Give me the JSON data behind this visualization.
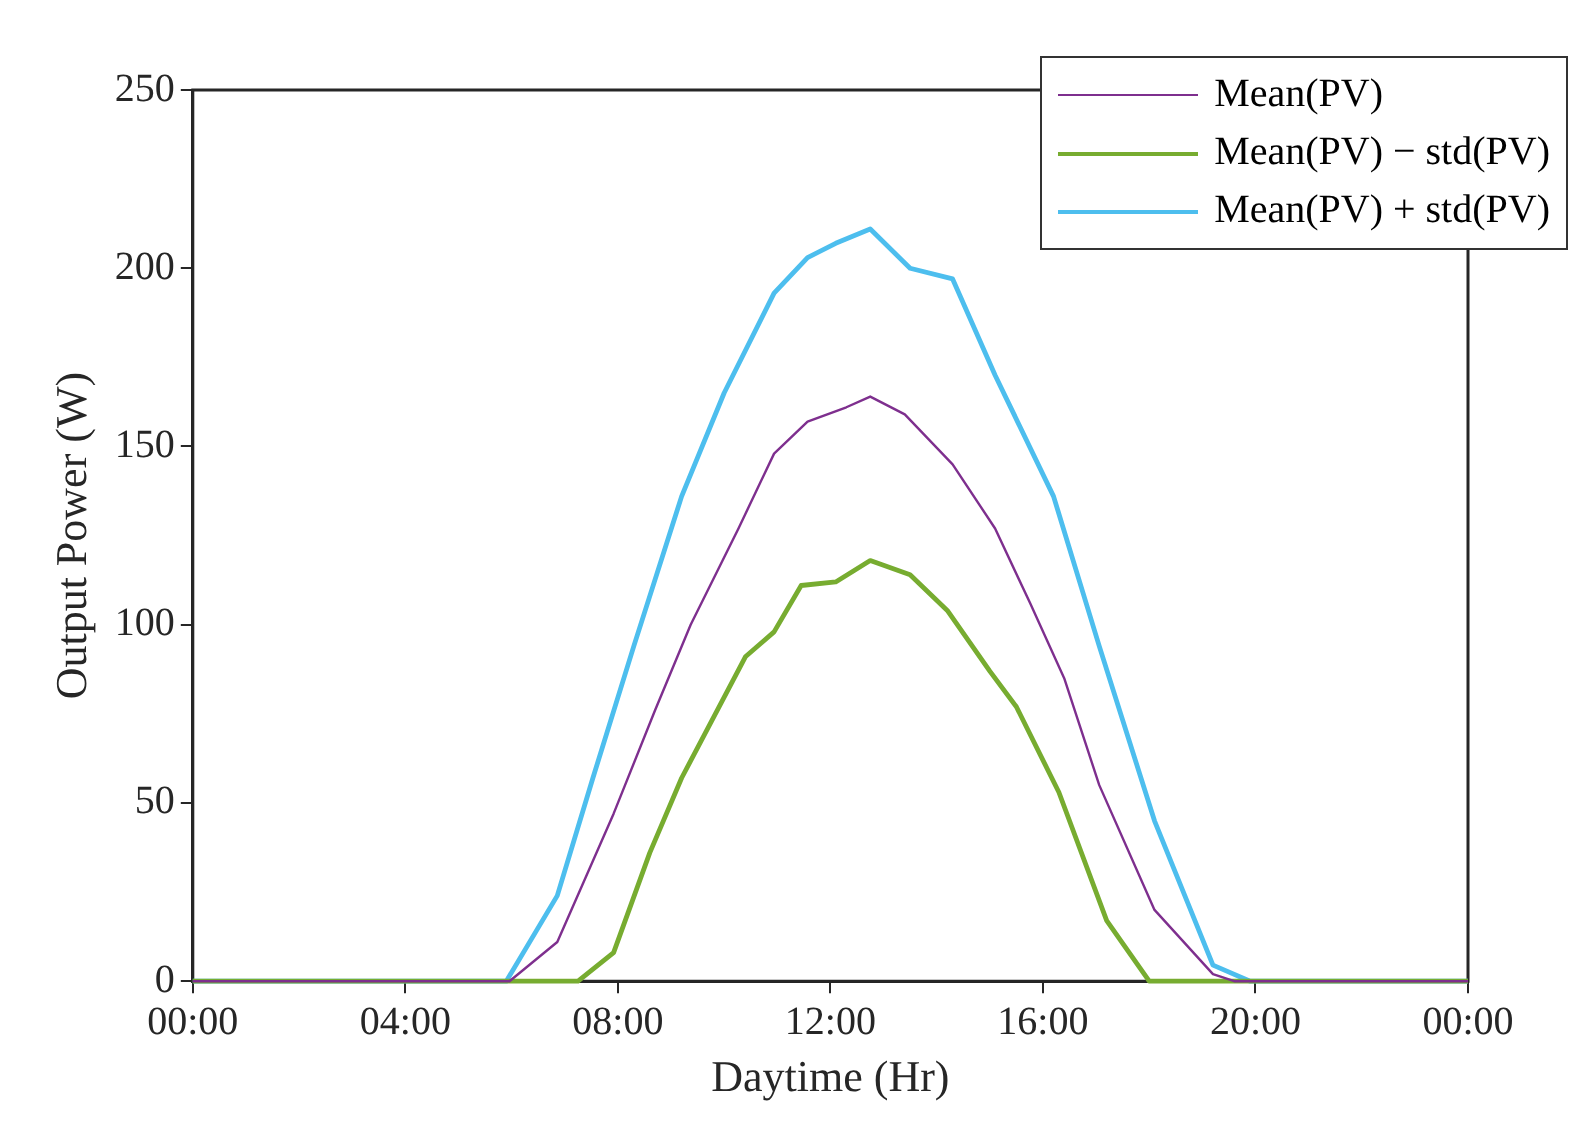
{
  "chart_data": {
    "type": "line",
    "xlabel": "Daytime (Hr)",
    "ylabel": "Output Power (W)",
    "legend": "top right",
    "grid": false,
    "marker": "none",
    "line_style": "solid",
    "xlim": [
      0,
      24
    ],
    "xticks": [
      {
        "value": 0,
        "label": "00:00"
      },
      {
        "value": 4,
        "label": "04:00"
      },
      {
        "value": 8,
        "label": "08:00"
      },
      {
        "value": 12,
        "label": "12:00"
      },
      {
        "value": 16,
        "label": "16:00"
      },
      {
        "value": 20,
        "label": "20:00"
      },
      {
        "value": 24,
        "label": "00:00"
      }
    ],
    "ylim": [
      0,
      250
    ],
    "yticks": [
      0,
      50,
      100,
      150,
      200,
      250
    ],
    "series": [
      {
        "name": "Mean(PV)",
        "color": "#7e2f8e",
        "x": [
          0,
          5.96,
          6.86,
          7.92,
          8.7,
          9.37,
          10.27,
          10.94,
          11.57,
          12.3,
          12.75,
          13.4,
          14.3,
          15.1,
          15.76,
          16.4,
          17.06,
          18.1,
          19.2,
          19.6,
          24
        ],
        "values": [
          0,
          0,
          11,
          47,
          76,
          100,
          127,
          148,
          157,
          161,
          164,
          159,
          145,
          127,
          106,
          85,
          55,
          20,
          2,
          0,
          0
        ]
      },
      {
        "name": "Mean(PV) − std(PV)",
        "color": "#77ac30",
        "x": [
          0,
          7.25,
          7.92,
          8.6,
          9.2,
          10.4,
          10.94,
          11.45,
          12.1,
          12.75,
          13.5,
          14.2,
          15,
          15.5,
          16.3,
          17.2,
          18,
          24
        ],
        "values": [
          0,
          0,
          8,
          36,
          57,
          91,
          98,
          111,
          112,
          118,
          114,
          104,
          87,
          77,
          53,
          17,
          0,
          0
        ]
      },
      {
        "name": "Mean(PV) + std(PV)",
        "color": "#4dbeee",
        "x": [
          0,
          5.9,
          6.86,
          7.53,
          8.3,
          9.2,
          10,
          10.94,
          11.57,
          12.1,
          12.75,
          13.5,
          14.3,
          15.1,
          16.2,
          17.06,
          18.1,
          19.2,
          19.9,
          24
        ],
        "values": [
          0,
          0,
          24,
          57,
          94,
          136,
          165,
          193,
          203,
          207,
          211,
          200,
          197,
          170,
          136,
          94,
          45,
          4.5,
          0,
          0
        ]
      }
    ]
  }
}
